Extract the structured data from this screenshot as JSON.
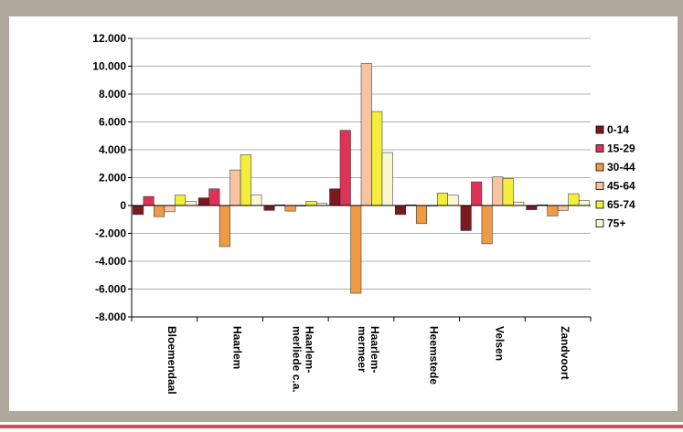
{
  "chart_data": {
    "type": "bar",
    "title": "",
    "xlabel": "",
    "ylabel": "",
    "ylim": [
      -8000,
      12000
    ],
    "yticks": [
      "12.000",
      "10.000",
      "8.000",
      "6.000",
      "4.000",
      "2.000",
      "0",
      "-2.000",
      "-4.000",
      "-6.000",
      "-8.000"
    ],
    "ytick_values": [
      12000,
      10000,
      8000,
      6000,
      4000,
      2000,
      0,
      -2000,
      -4000,
      -6000,
      -8000
    ],
    "categories": [
      [
        "Bloemendaal"
      ],
      [
        "Haarlem"
      ],
      [
        "Haarlem-",
        "merliede c.a."
      ],
      [
        "Haarlem-",
        "mermeer"
      ],
      [
        "Heemstede"
      ],
      [
        "Velsen"
      ],
      [
        "Zandvoort"
      ]
    ],
    "legend_position": "right",
    "grid": "horizontal",
    "series": [
      {
        "name": "0-14",
        "color": "#7a1a1e",
        "values": [
          -650,
          550,
          -350,
          1200,
          -650,
          -1800,
          -300
        ]
      },
      {
        "name": "15-29",
        "color": "#dd3355",
        "values": [
          650,
          1200,
          50,
          5400,
          50,
          1700,
          50
        ]
      },
      {
        "name": "30-44",
        "color": "#ef9a45",
        "values": [
          -800,
          -2950,
          -400,
          -6300,
          -1300,
          -2750,
          -750
        ]
      },
      {
        "name": "45-64",
        "color": "#f7c3a0",
        "values": [
          -450,
          2550,
          0,
          10200,
          0,
          2050,
          -350
        ]
      },
      {
        "name": "65-74",
        "color": "#f2ee3b",
        "values": [
          750,
          3650,
          300,
          6750,
          900,
          1950,
          850
        ]
      },
      {
        "name": "75+",
        "color": "#fbf7d0",
        "values": [
          300,
          750,
          150,
          3800,
          750,
          250,
          350
        ]
      }
    ]
  }
}
